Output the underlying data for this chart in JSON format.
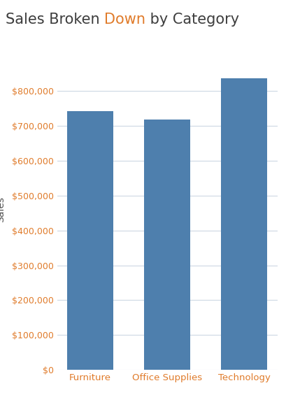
{
  "categories": [
    "Furniture",
    "Office Supplies",
    "Technology"
  ],
  "values": [
    742000,
    719000,
    836000
  ],
  "bar_color": "#4e7fad",
  "background_color": "#ffffff",
  "grid_color": "#cdd8e3",
  "title_text1": "Sales Broken ",
  "title_text2": "Down",
  "title_text3": " by Category",
  "title_color1": "#3d3d3d",
  "title_color2": "#e07b2a",
  "title_color3": "#3d3d3d",
  "title_fontsize": 15,
  "ylabel": "Sales",
  "ylabel_color": "#555555",
  "ylabel_fontsize": 10,
  "tick_label_color": "#e07b2a",
  "tick_label_fontsize": 9,
  "xtick_label_color": "#e07b2a",
  "xtick_label_fontsize": 9.5,
  "ylim": [
    0,
    920000
  ],
  "yticks": [
    0,
    100000,
    200000,
    300000,
    400000,
    500000,
    600000,
    700000,
    800000
  ],
  "ytick_labels": [
    "$0",
    "$100,000",
    "$200,000",
    "$300,000",
    "$400,000",
    "$500,000",
    "$600,000",
    "$700,000",
    "$800,000"
  ],
  "bar_width": 0.6,
  "figsize": [
    4.09,
    5.88
  ],
  "dpi": 100
}
